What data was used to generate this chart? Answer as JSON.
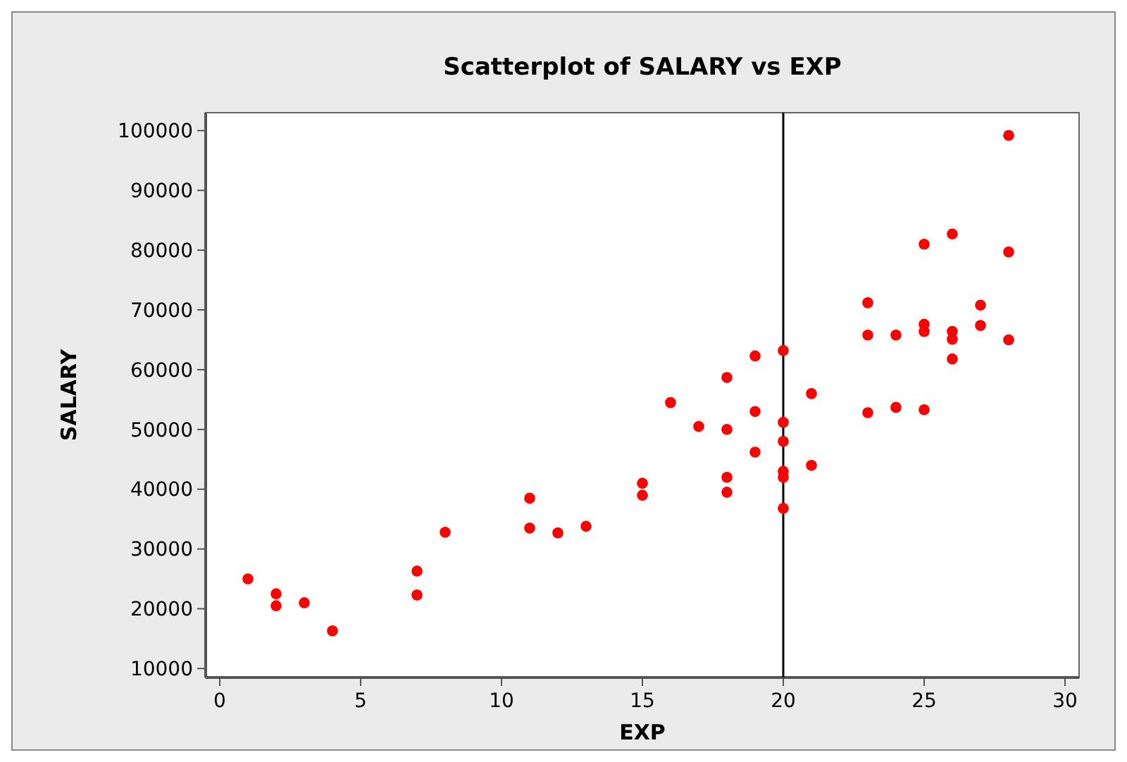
{
  "chart_data": {
    "type": "scatter",
    "title": "Scatterplot of SALARY vs EXP",
    "xlabel": "EXP",
    "ylabel": "SALARY",
    "x": [
      1,
      2,
      2,
      3,
      4,
      7,
      7,
      8,
      11,
      11,
      12,
      13,
      15,
      15,
      16,
      17,
      18,
      18,
      18,
      18,
      19,
      19,
      19,
      20,
      20,
      20,
      20,
      20,
      20,
      21,
      21,
      23,
      23,
      23,
      24,
      24,
      25,
      25,
      25,
      25,
      26,
      26,
      26,
      26,
      27,
      27,
      28,
      28,
      28
    ],
    "values": [
      25000,
      22500,
      20500,
      21000,
      16300,
      26300,
      22300,
      32800,
      38500,
      33500,
      32700,
      33800,
      41000,
      39000,
      54500,
      50500,
      58700,
      50000,
      42000,
      39500,
      62300,
      53000,
      46200,
      63200,
      51200,
      48000,
      43000,
      42000,
      36800,
      56000,
      44000,
      71200,
      65800,
      52800,
      65800,
      53700,
      81000,
      67600,
      66400,
      53300,
      82700,
      66400,
      65100,
      61800,
      70800,
      67400,
      99200,
      79700,
      65000
    ],
    "color": "#ff0000",
    "marker": "circle",
    "xlim": [
      -0.5,
      30.5
    ],
    "xticks": [
      0,
      5,
      10,
      15,
      20,
      25,
      30
    ],
    "ylim": [
      8500,
      103000
    ],
    "yticks": [
      10000,
      20000,
      30000,
      40000,
      50000,
      60000,
      70000,
      80000,
      90000,
      100000
    ],
    "ref_lines": [
      {
        "axis": "x",
        "value": 20,
        "color": "#000000"
      }
    ],
    "grid": false
  }
}
